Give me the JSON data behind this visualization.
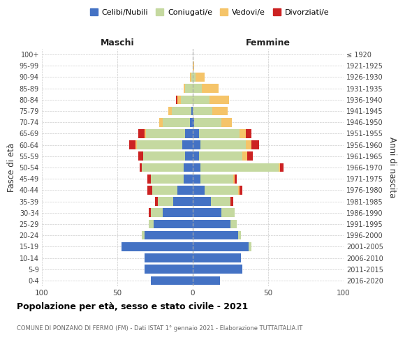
{
  "age_groups": [
    "0-4",
    "5-9",
    "10-14",
    "15-19",
    "20-24",
    "25-29",
    "30-34",
    "35-39",
    "40-44",
    "45-49",
    "50-54",
    "55-59",
    "60-64",
    "65-69",
    "70-74",
    "75-79",
    "80-84",
    "85-89",
    "90-94",
    "95-99",
    "100+"
  ],
  "birth_years": [
    "2016-2020",
    "2011-2015",
    "2006-2010",
    "2001-2005",
    "1996-2000",
    "1991-1995",
    "1986-1990",
    "1981-1985",
    "1976-1980",
    "1971-1975",
    "1966-1970",
    "1961-1965",
    "1956-1960",
    "1951-1955",
    "1946-1950",
    "1941-1945",
    "1936-1940",
    "1931-1935",
    "1926-1930",
    "1921-1925",
    "≤ 1920"
  ],
  "colors": {
    "celibe": "#4472c4",
    "coniugato": "#c5d9a0",
    "vedovo": "#f5c469",
    "divorziato": "#cc2222"
  },
  "males": {
    "celibe": [
      28,
      32,
      32,
      47,
      32,
      26,
      20,
      13,
      10,
      6,
      6,
      5,
      7,
      5,
      2,
      1,
      0,
      0,
      0,
      0,
      0
    ],
    "coniugato": [
      0,
      0,
      0,
      0,
      2,
      3,
      8,
      10,
      17,
      22,
      28,
      28,
      30,
      26,
      18,
      13,
      8,
      5,
      1,
      0,
      0
    ],
    "vedovo": [
      0,
      0,
      0,
      0,
      0,
      0,
      0,
      0,
      0,
      0,
      0,
      0,
      1,
      1,
      2,
      2,
      2,
      1,
      1,
      0,
      0
    ],
    "divorziato": [
      0,
      0,
      0,
      0,
      0,
      0,
      1,
      2,
      3,
      2,
      1,
      3,
      4,
      4,
      0,
      0,
      1,
      0,
      0,
      0,
      0
    ]
  },
  "females": {
    "nubile": [
      18,
      33,
      32,
      37,
      30,
      25,
      19,
      12,
      8,
      5,
      5,
      4,
      5,
      4,
      1,
      0,
      0,
      0,
      0,
      0,
      0
    ],
    "coniugata": [
      0,
      0,
      0,
      2,
      2,
      4,
      9,
      13,
      22,
      22,
      52,
      29,
      30,
      27,
      18,
      13,
      11,
      6,
      2,
      0,
      0
    ],
    "vedova": [
      0,
      0,
      0,
      0,
      0,
      0,
      0,
      0,
      1,
      1,
      1,
      3,
      4,
      4,
      7,
      10,
      13,
      11,
      6,
      1,
      0
    ],
    "divorziata": [
      0,
      0,
      0,
      0,
      0,
      0,
      0,
      2,
      2,
      1,
      2,
      4,
      5,
      4,
      0,
      0,
      0,
      0,
      0,
      0,
      0
    ]
  },
  "title": "Popolazione per età, sesso e stato civile - 2021",
  "subtitle": "COMUNE DI PONZANO DI FERMO (FM) - Dati ISTAT 1° gennaio 2021 - Elaborazione TUTTAITALIA.IT",
  "xlabel_left": "Maschi",
  "xlabel_right": "Femmine",
  "ylabel_left": "Fasce di età",
  "ylabel_right": "Anni di nascita",
  "xlim": 100,
  "legend_labels": [
    "Celibi/Nubili",
    "Coniugati/e",
    "Vedovi/e",
    "Divorziati/e"
  ]
}
